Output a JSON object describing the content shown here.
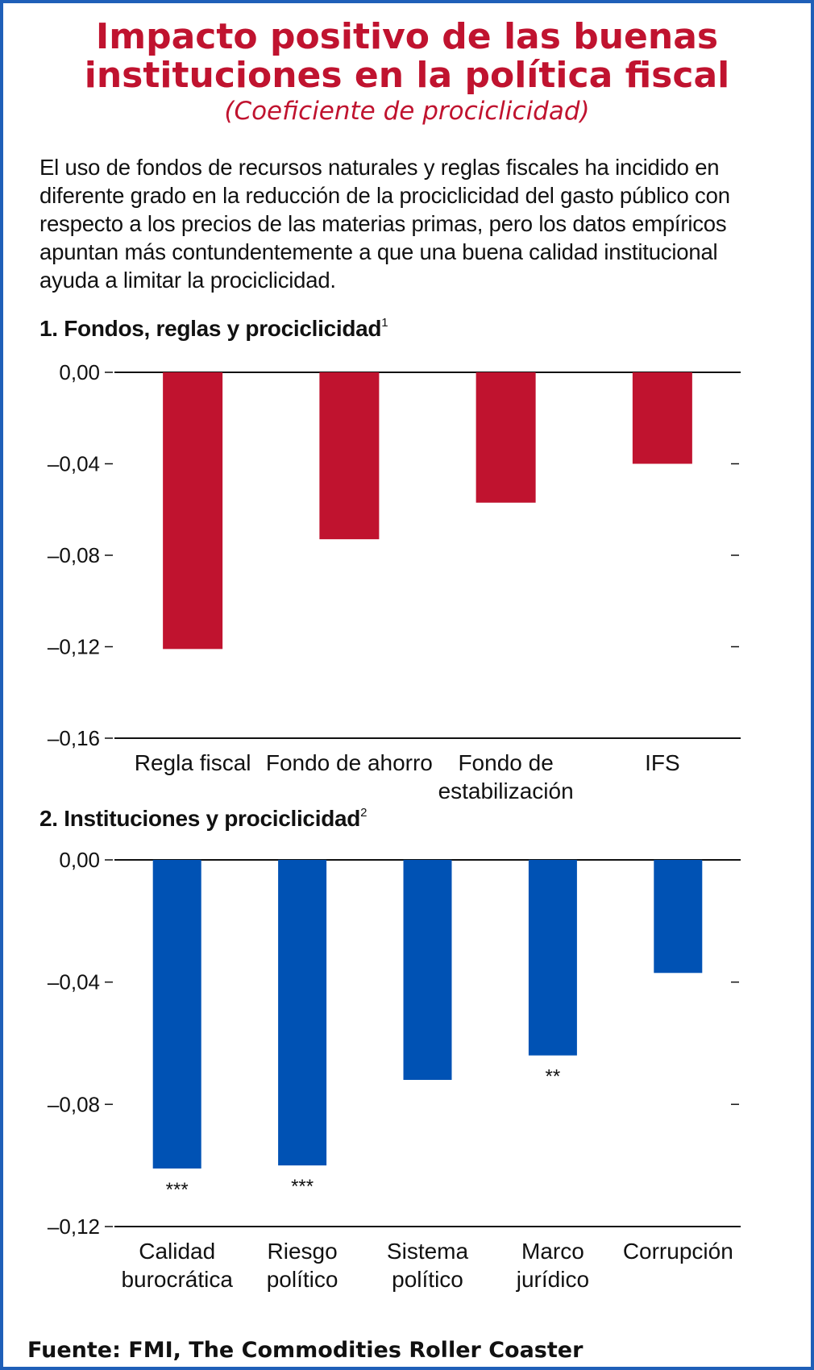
{
  "title_line1": "Impacto positivo de las buenas",
  "title_line2": "instituciones en la política fiscal",
  "subtitle": "(Coeficiente de prociclicidad)",
  "description_lines": [
    "El uso de fondos de recursos naturales y reglas fiscales ha incidido en",
    "diferente grado en la reducción de la prociclicidad del gasto público con",
    "respecto a los precios de las materias primas, pero los datos empíricos",
    "apuntan más contundentemente a que una buena calidad institucional",
    "ayuda a limitar la prociclicidad."
  ],
  "source": "Fuente: FMI, The Commodities Roller Coaster",
  "chart_data": [
    {
      "type": "bar",
      "title": "1. Fondos, reglas y prociclicidad",
      "title_sup": "1",
      "categories": [
        [
          "Regla fiscal"
        ],
        [
          "Fondo de ahorro"
        ],
        [
          "Fondo de",
          "estabilización"
        ],
        [
          "IFS"
        ]
      ],
      "values": [
        -0.121,
        -0.073,
        -0.057,
        -0.04
      ],
      "annotations": [
        "",
        "",
        "",
        ""
      ],
      "ylim": [
        -0.16,
        0.0
      ],
      "yticks": [
        0.0,
        -0.04,
        -0.08,
        -0.12,
        -0.16
      ],
      "ytick_labels": [
        "0,00",
        "–0,04",
        "–0,08",
        "–0,12",
        "–0,16"
      ],
      "color": "#c0132f",
      "grid": false
    },
    {
      "type": "bar",
      "title": "2. Instituciones y prociclicidad",
      "title_sup": "2",
      "categories": [
        [
          "Calidad",
          "burocrática"
        ],
        [
          "Riesgo",
          "político"
        ],
        [
          "Sistema",
          "político"
        ],
        [
          "Marco",
          "jurídico"
        ],
        [
          "Corrupción"
        ]
      ],
      "values": [
        -0.101,
        -0.1,
        -0.072,
        -0.064,
        -0.037
      ],
      "annotations": [
        "***",
        "***",
        "",
        "**",
        ""
      ],
      "ylim": [
        -0.12,
        0.0
      ],
      "yticks": [
        0.0,
        -0.04,
        -0.08,
        -0.12
      ],
      "ytick_labels": [
        "0,00",
        "–0,04",
        "–0,08",
        "–0,12"
      ],
      "color": "#0052b4",
      "grid": false
    }
  ]
}
